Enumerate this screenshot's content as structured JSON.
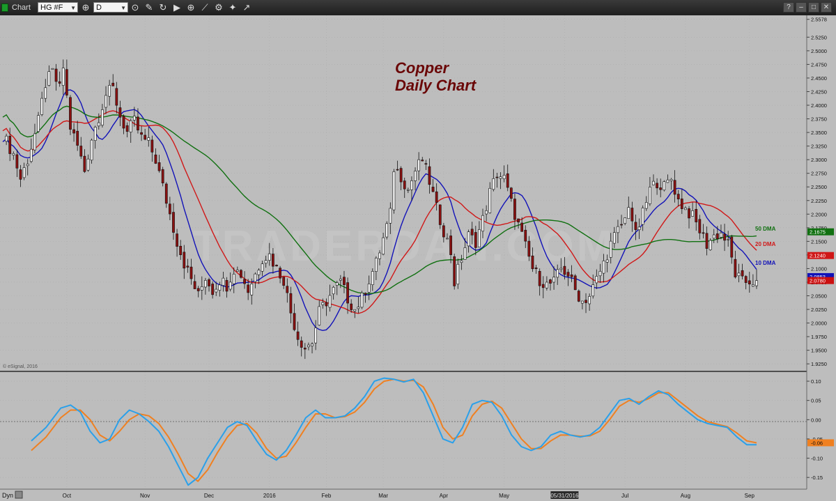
{
  "toolbar": {
    "window_title": "Chart",
    "symbol": "HG #F",
    "interval": "D",
    "icons": [
      "link-icon",
      "lock-icon",
      "pencil-icon",
      "refresh-icon",
      "play-icon",
      "zoom-in-icon",
      "draw-icon",
      "settings-icon",
      "twitter-icon",
      "share-icon"
    ],
    "window_buttons": [
      "?",
      "–",
      "□",
      "✕"
    ]
  },
  "chart_data": [
    {
      "type": "candlestick",
      "title": "Copper",
      "subtitle": "Daily Chart",
      "watermark": "TRADERDAN.COM",
      "copyright": "© eSignal, 2016",
      "y_ticks": [
        "2.5578",
        "2.5250",
        "2.5000",
        "2.4750",
        "2.4500",
        "2.4250",
        "2.4000",
        "2.3750",
        "2.3500",
        "2.3250",
        "2.3000",
        "2.2750",
        "2.2500",
        "2.2250",
        "2.2000",
        "2.1750",
        "2.1500",
        "2.1250",
        "2.1000",
        "2.0750",
        "2.0500",
        "2.0250",
        "2.0000",
        "1.9750",
        "1.9500",
        "1.9250"
      ],
      "ylim": [
        1.915,
        2.56
      ],
      "x_labels": [
        "Oct",
        "Nov",
        "Dec",
        "2016",
        "Feb",
        "Mar",
        "Apr",
        "May",
        "05/31/2016",
        "Jul",
        "Aug",
        "Sep"
      ],
      "x_label_days": [
        18,
        40,
        58,
        75,
        91,
        107,
        124,
        141,
        158,
        175,
        192,
        210
      ],
      "close_path": [
        [
          0,
          2.345
        ],
        [
          3,
          2.31
        ],
        [
          5,
          2.265
        ],
        [
          7,
          2.3
        ],
        [
          10,
          2.37
        ],
        [
          12,
          2.44
        ],
        [
          14,
          2.46
        ],
        [
          16,
          2.43
        ],
        [
          17,
          2.47
        ],
        [
          19,
          2.36
        ],
        [
          21,
          2.325
        ],
        [
          23,
          2.28
        ],
        [
          25,
          2.34
        ],
        [
          27,
          2.38
        ],
        [
          29,
          2.42
        ],
        [
          31,
          2.43
        ],
        [
          33,
          2.38
        ],
        [
          35,
          2.35
        ],
        [
          37,
          2.37
        ],
        [
          39,
          2.34
        ],
        [
          41,
          2.33
        ],
        [
          43,
          2.3
        ],
        [
          45,
          2.25
        ],
        [
          47,
          2.2
        ],
        [
          49,
          2.15
        ],
        [
          51,
          2.11
        ],
        [
          53,
          2.08
        ],
        [
          55,
          2.05
        ],
        [
          57,
          2.085
        ],
        [
          59,
          2.06
        ],
        [
          61,
          2.08
        ],
        [
          63,
          2.07
        ],
        [
          65,
          2.1
        ],
        [
          67,
          2.09
        ],
        [
          69,
          2.06
        ],
        [
          71,
          2.09
        ],
        [
          73,
          2.12
        ],
        [
          75,
          2.125
        ],
        [
          77,
          2.1
        ],
        [
          79,
          2.08
        ],
        [
          81,
          2.02
        ],
        [
          83,
          1.975
        ],
        [
          85,
          1.955
        ],
        [
          87,
          1.965
        ],
        [
          89,
          2.02
        ],
        [
          91,
          2.04
        ],
        [
          93,
          2.06
        ],
        [
          95,
          2.075
        ],
        [
          97,
          2.045
        ],
        [
          99,
          2.025
        ],
        [
          101,
          2.045
        ],
        [
          103,
          2.08
        ],
        [
          105,
          2.11
        ],
        [
          107,
          2.155
        ],
        [
          109,
          2.2
        ],
        [
          110,
          2.285
        ],
        [
          112,
          2.27
        ],
        [
          114,
          2.245
        ],
        [
          116,
          2.28
        ],
        [
          118,
          2.3
        ],
        [
          120,
          2.26
        ],
        [
          122,
          2.21
        ],
        [
          124,
          2.17
        ],
        [
          126,
          2.13
        ],
        [
          127,
          2.075
        ],
        [
          129,
          2.12
        ],
        [
          131,
          2.16
        ],
        [
          133,
          2.15
        ],
        [
          135,
          2.19
        ],
        [
          137,
          2.24
        ],
        [
          139,
          2.275
        ],
        [
          141,
          2.265
        ],
        [
          143,
          2.22
        ],
        [
          145,
          2.18
        ],
        [
          147,
          2.14
        ],
        [
          149,
          2.1
        ],
        [
          151,
          2.08
        ],
        [
          153,
          2.07
        ],
        [
          155,
          2.075
        ],
        [
          157,
          2.1
        ],
        [
          159,
          2.09
        ],
        [
          161,
          2.06
        ],
        [
          163,
          2.04
        ],
        [
          165,
          2.05
        ],
        [
          167,
          2.08
        ],
        [
          169,
          2.11
        ],
        [
          171,
          2.145
        ],
        [
          173,
          2.17
        ],
        [
          175,
          2.19
        ],
        [
          176,
          2.22
        ],
        [
          178,
          2.16
        ],
        [
          180,
          2.2
        ],
        [
          182,
          2.245
        ],
        [
          184,
          2.26
        ],
        [
          186,
          2.25
        ],
        [
          188,
          2.265
        ],
        [
          190,
          2.225
        ],
        [
          192,
          2.21
        ],
        [
          194,
          2.195
        ],
        [
          196,
          2.17
        ],
        [
          198,
          2.145
        ],
        [
          200,
          2.16
        ],
        [
          202,
          2.165
        ],
        [
          204,
          2.145
        ],
        [
          206,
          2.09
        ],
        [
          208,
          2.075
        ],
        [
          210,
          2.077
        ],
        [
          212,
          2.078
        ]
      ],
      "moving_averages": [
        {
          "name": "10 DMA",
          "period": 10,
          "color": "#1212b8",
          "last_value": "2.0853"
        },
        {
          "name": "20 DMA",
          "period": 20,
          "color": "#d01818",
          "last_value": "2.1240"
        },
        {
          "name": "50 DMA",
          "period": 50,
          "color": "#107010",
          "last_value": "2.1675"
        }
      ],
      "last_close_label": "2.0780",
      "colors": {
        "up_candle": "#f2f2f2",
        "down_candle": "#8a1010",
        "title": "#6a0606",
        "panel_bg": "#bdbdbd",
        "last_close_bg": "#cc1010"
      }
    },
    {
      "type": "line",
      "name": "oscillator",
      "label": "Dyn",
      "y_ticks": [
        "0.10",
        "0.05",
        "0.00",
        "-0.05",
        "-0.10",
        "-0.15"
      ],
      "ylim": [
        -0.175,
        0.12
      ],
      "current_value": "-0.06",
      "series": [
        {
          "name": "fast",
          "color": "#2aa0ea",
          "points": [
            [
              0,
              -0.055
            ],
            [
              3,
              -0.02
            ],
            [
              6,
              0.03
            ],
            [
              8,
              0.038
            ],
            [
              10,
              0.02
            ],
            [
              12,
              -0.03
            ],
            [
              14,
              -0.06
            ],
            [
              16,
              -0.05
            ],
            [
              18,
              0.0
            ],
            [
              20,
              0.025
            ],
            [
              22,
              0.015
            ],
            [
              24,
              -0.005
            ],
            [
              26,
              -0.03
            ],
            [
              28,
              -0.07
            ],
            [
              30,
              -0.12
            ],
            [
              32,
              -0.17
            ],
            [
              34,
              -0.15
            ],
            [
              36,
              -0.1
            ],
            [
              38,
              -0.06
            ],
            [
              40,
              -0.02
            ],
            [
              42,
              -0.005
            ],
            [
              44,
              -0.015
            ],
            [
              46,
              -0.055
            ],
            [
              48,
              -0.09
            ],
            [
              50,
              -0.105
            ],
            [
              52,
              -0.08
            ],
            [
              54,
              -0.04
            ],
            [
              56,
              0.005
            ],
            [
              58,
              0.025
            ],
            [
              60,
              0.005
            ],
            [
              62,
              0.005
            ],
            [
              64,
              0.01
            ],
            [
              66,
              0.03
            ],
            [
              68,
              0.06
            ],
            [
              70,
              0.1
            ],
            [
              72,
              0.108
            ],
            [
              74,
              0.105
            ],
            [
              76,
              0.098
            ],
            [
              78,
              0.105
            ],
            [
              80,
              0.07
            ],
            [
              82,
              0.01
            ],
            [
              84,
              -0.05
            ],
            [
              86,
              -0.06
            ],
            [
              88,
              -0.02
            ],
            [
              90,
              0.04
            ],
            [
              92,
              0.05
            ],
            [
              94,
              0.045
            ],
            [
              96,
              0.01
            ],
            [
              98,
              -0.04
            ],
            [
              100,
              -0.07
            ],
            [
              102,
              -0.08
            ],
            [
              104,
              -0.07
            ],
            [
              106,
              -0.04
            ],
            [
              108,
              -0.03
            ],
            [
              110,
              -0.04
            ],
            [
              112,
              -0.045
            ],
            [
              114,
              -0.04
            ],
            [
              116,
              -0.02
            ],
            [
              118,
              0.015
            ],
            [
              120,
              0.05
            ],
            [
              122,
              0.055
            ],
            [
              124,
              0.04
            ],
            [
              126,
              0.06
            ],
            [
              128,
              0.075
            ],
            [
              130,
              0.065
            ],
            [
              132,
              0.04
            ],
            [
              134,
              0.02
            ],
            [
              136,
              0.0
            ],
            [
              138,
              -0.01
            ],
            [
              140,
              -0.015
            ],
            [
              142,
              -0.02
            ],
            [
              144,
              -0.045
            ],
            [
              146,
              -0.065
            ],
            [
              148,
              -0.065
            ]
          ]
        },
        {
          "name": "slow",
          "color": "#f08020",
          "points": [
            [
              0,
              -0.08
            ],
            [
              3,
              -0.045
            ],
            [
              6,
              0.005
            ],
            [
              8,
              0.025
            ],
            [
              10,
              0.025
            ],
            [
              12,
              0.0
            ],
            [
              14,
              -0.04
            ],
            [
              16,
              -0.055
            ],
            [
              18,
              -0.03
            ],
            [
              20,
              0.0
            ],
            [
              22,
              0.015
            ],
            [
              24,
              0.01
            ],
            [
              26,
              -0.01
            ],
            [
              28,
              -0.045
            ],
            [
              30,
              -0.09
            ],
            [
              32,
              -0.14
            ],
            [
              34,
              -0.16
            ],
            [
              36,
              -0.13
            ],
            [
              38,
              -0.085
            ],
            [
              40,
              -0.045
            ],
            [
              42,
              -0.015
            ],
            [
              44,
              -0.01
            ],
            [
              46,
              -0.035
            ],
            [
              48,
              -0.075
            ],
            [
              50,
              -0.1
            ],
            [
              52,
              -0.095
            ],
            [
              54,
              -0.06
            ],
            [
              56,
              -0.02
            ],
            [
              58,
              0.015
            ],
            [
              60,
              0.015
            ],
            [
              62,
              0.005
            ],
            [
              64,
              0.008
            ],
            [
              66,
              0.02
            ],
            [
              68,
              0.045
            ],
            [
              70,
              0.08
            ],
            [
              72,
              0.1
            ],
            [
              74,
              0.105
            ],
            [
              76,
              0.1
            ],
            [
              78,
              0.102
            ],
            [
              80,
              0.085
            ],
            [
              82,
              0.04
            ],
            [
              84,
              -0.02
            ],
            [
              86,
              -0.05
            ],
            [
              88,
              -0.04
            ],
            [
              90,
              0.01
            ],
            [
              92,
              0.04
            ],
            [
              94,
              0.048
            ],
            [
              96,
              0.03
            ],
            [
              98,
              -0.01
            ],
            [
              100,
              -0.05
            ],
            [
              102,
              -0.075
            ],
            [
              104,
              -0.075
            ],
            [
              106,
              -0.055
            ],
            [
              108,
              -0.04
            ],
            [
              110,
              -0.04
            ],
            [
              112,
              -0.043
            ],
            [
              114,
              -0.042
            ],
            [
              116,
              -0.03
            ],
            [
              118,
              0.0
            ],
            [
              120,
              0.035
            ],
            [
              122,
              0.05
            ],
            [
              124,
              0.045
            ],
            [
              126,
              0.055
            ],
            [
              128,
              0.07
            ],
            [
              130,
              0.07
            ],
            [
              132,
              0.05
            ],
            [
              134,
              0.03
            ],
            [
              136,
              0.01
            ],
            [
              138,
              -0.005
            ],
            [
              140,
              -0.012
            ],
            [
              142,
              -0.018
            ],
            [
              144,
              -0.035
            ],
            [
              146,
              -0.055
            ],
            [
              148,
              -0.06
            ]
          ]
        }
      ]
    }
  ]
}
